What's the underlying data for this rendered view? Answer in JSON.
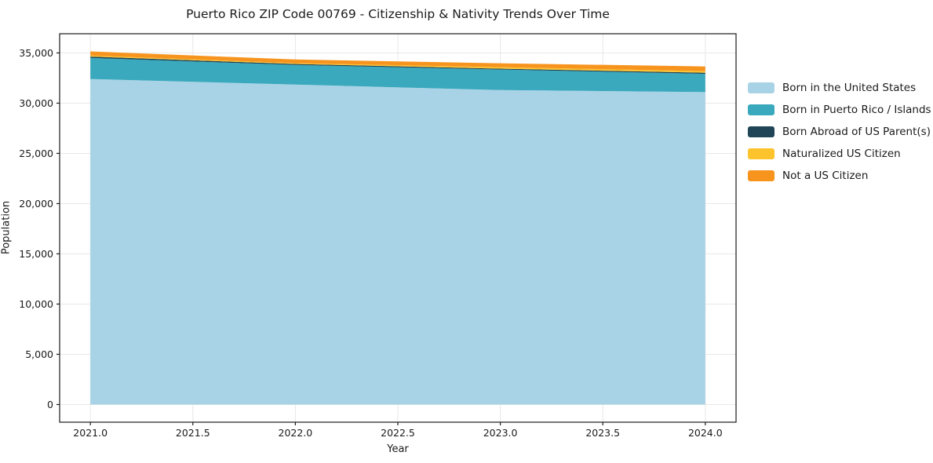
{
  "title": "Puerto Rico ZIP Code 00769 - Citizenship & Nativity Trends Over Time",
  "chart_data": {
    "type": "area",
    "stacked": true,
    "title": "Puerto Rico ZIP Code 00769 - Citizenship & Nativity Trends Over Time",
    "xlabel": "Year",
    "ylabel": "Population",
    "x": [
      2021,
      2022,
      2023,
      2024
    ],
    "series": [
      {
        "name": "Born in the United States",
        "color": "#a8d3e6",
        "values": [
          32400,
          31850,
          31300,
          31100
        ]
      },
      {
        "name": "Born in Puerto Rico / Islands",
        "color": "#3aa9bd",
        "values": [
          2100,
          1950,
          2050,
          1820
        ]
      },
      {
        "name": "Born Abroad of US Parent(s)",
        "color": "#1f4557",
        "values": [
          140,
          100,
          80,
          110
        ]
      },
      {
        "name": "Naturalized US Citizen",
        "color": "#fcc32d",
        "values": [
          100,
          80,
          150,
          150
        ]
      },
      {
        "name": "Not a US Citizen",
        "color": "#f7941e",
        "values": [
          410,
          370,
          390,
          470
        ]
      }
    ],
    "totals": [
      35150,
      34350,
      33970,
      33650
    ],
    "xticks": [
      2021.0,
      2021.5,
      2022.0,
      2022.5,
      2023.0,
      2023.5,
      2024.0
    ],
    "xtick_labels": [
      "2021.0",
      "2021.5",
      "2022.0",
      "2022.5",
      "2023.0",
      "2023.5",
      "2024.0"
    ],
    "yticks": [
      0,
      5000,
      10000,
      15000,
      20000,
      25000,
      30000,
      35000
    ],
    "ytick_labels": [
      "0",
      "5,000",
      "10,000",
      "15,000",
      "20,000",
      "25,000",
      "30,000",
      "35,000"
    ],
    "xlim": [
      2020.85,
      2024.15
    ],
    "ylim": [
      -1760,
      36910
    ],
    "grid": true,
    "legend_position": "outside-right-top",
    "colors": {
      "grid": "#e8e8e8",
      "spine": "#1a1a1a",
      "background": "#ffffff"
    }
  }
}
